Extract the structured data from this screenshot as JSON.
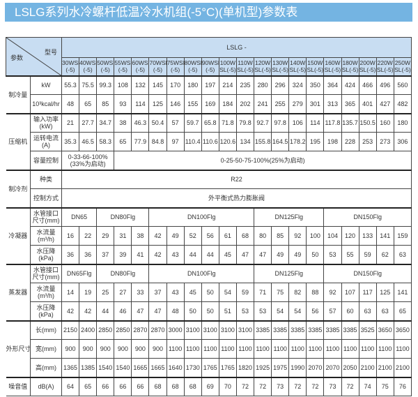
{
  "title": "LSLG系列水冷螺杆低温冷水机组(-5°C)(单机型)参数表",
  "header": {
    "param_label": "参数",
    "model_label": "型号",
    "series_label": "LSLG -",
    "models": [
      [
        "30WSL",
        "(-5)"
      ],
      [
        "40WSL",
        "(-5)"
      ],
      [
        "50WSL",
        "(-5)"
      ],
      [
        "55WSL",
        "(-5)"
      ],
      [
        "60WSL",
        "(-5)"
      ],
      [
        "70WSL",
        "(-5)"
      ],
      [
        "75WSL",
        "(-5)"
      ],
      [
        "80WSL",
        "(-5)"
      ],
      [
        "90WSL",
        "(-5)"
      ],
      [
        "100W",
        "SL(-5)"
      ],
      [
        "110W",
        "SL(-5)"
      ],
      [
        "120W",
        "SL(-5)"
      ],
      [
        "130W",
        "SL(-5)"
      ],
      [
        "140W",
        "SL(-5)"
      ],
      [
        "150W",
        "SL(-5)"
      ],
      [
        "160W",
        "SL(-5)"
      ],
      [
        "180W",
        "SL(-5)"
      ],
      [
        "200W",
        "SL(-5)"
      ],
      [
        "220W",
        "SL(-5)"
      ],
      [
        "250W",
        "SL(-5)"
      ]
    ]
  },
  "groups": [
    {
      "label": "制冷量",
      "rows": [
        {
          "sub": "kW",
          "cells": [
            "55.3",
            "75.5",
            "99.3",
            "108",
            "132",
            "145",
            "170",
            "180",
            "197",
            "214",
            "235",
            "280",
            "296",
            "324",
            "350",
            "364",
            "424",
            "466",
            "496",
            "560"
          ]
        },
        {
          "sub": "10³kcal/hr",
          "cells": [
            "48",
            "65",
            "85",
            "93",
            "114",
            "125",
            "146",
            "155",
            "169",
            "184",
            "202",
            "241",
            "255",
            "279",
            "301",
            "313",
            "365",
            "401",
            "427",
            "482"
          ]
        }
      ]
    },
    {
      "label": "压缩机",
      "rows": [
        {
          "sub": "输入功率(kW)",
          "cells": [
            "21",
            "27.7",
            "34.7",
            "38",
            "46.3",
            "50.4",
            "57",
            "59.7",
            "65.8",
            "71.8",
            "79.8",
            "92.7",
            "97.8",
            "106",
            "114",
            "117.8",
            "135.7",
            "150.5",
            "160",
            "180"
          ]
        },
        {
          "sub": "运转电流(A)",
          "cells": [
            "35.3",
            "46.5",
            "58.3",
            "65",
            "77.9",
            "84.8",
            "97",
            "110.4",
            "110.6",
            "120.6",
            "134",
            "155.8",
            "164.5",
            "178.2",
            "195",
            "198",
            "228",
            "253",
            "273",
            "306"
          ]
        },
        {
          "sub": "容量控制",
          "spans": [
            {
              "v": "0-33-66-100%(33%为启动)",
              "span": 3
            },
            {
              "v": "0-25-50-75-100%(25%为启动)",
              "span": 17
            }
          ]
        }
      ]
    },
    {
      "label": "制冷剂",
      "rows": [
        {
          "sub": "种类",
          "spans": [
            {
              "v": "R22",
              "span": 20
            }
          ]
        },
        {
          "sub": "控制方式",
          "spans": [
            {
              "v": "外平衡式热力膨胀阀",
              "span": 20
            }
          ]
        }
      ]
    },
    {
      "label": "冷凝器",
      "rows": [
        {
          "sub": "水管接口尺寸(mm)",
          "spans": [
            {
              "v": "DN65",
              "span": 2
            },
            {
              "v": "DN80Flg",
              "span": 3
            },
            {
              "v": "DN100Flg",
              "span": 6
            },
            {
              "v": "DN125Flg",
              "span": 4
            },
            {
              "v": "DN150Flg",
              "span": 5
            }
          ]
        },
        {
          "sub": "水流量(m³/h)",
          "cells": [
            "16",
            "22",
            "29",
            "31",
            "38",
            "42",
            "49",
            "52",
            "56",
            "61",
            "68",
            "80",
            "85",
            "92",
            "100",
            "104",
            "120",
            "133",
            "141",
            "159"
          ]
        },
        {
          "sub": "水压降(kPa)",
          "cells": [
            "36",
            "36",
            "37",
            "39",
            "41",
            "42",
            "43",
            "44",
            "44",
            "45",
            "47",
            "47",
            "49",
            "49",
            "50",
            "53",
            "55",
            "59",
            "62",
            "63"
          ]
        }
      ]
    },
    {
      "label": "蒸发器",
      "rows": [
        {
          "sub": "水管接口尺寸(mm)",
          "spans": [
            {
              "v": "DN65Flg",
              "span": 2
            },
            {
              "v": "DN80Flg",
              "span": 3
            },
            {
              "v": "DN100Flg",
              "span": 6
            },
            {
              "v": "DN125Flg",
              "span": 4
            },
            {
              "v": "DN150Flg",
              "span": 5
            }
          ]
        },
        {
          "sub": "水流量(m³/h)",
          "cells": [
            "14",
            "19",
            "25",
            "27",
            "33",
            "37",
            "43",
            "45",
            "50",
            "54",
            "59",
            "71",
            "75",
            "82",
            "88",
            "92",
            "107",
            "117",
            "125",
            "141"
          ]
        },
        {
          "sub": "水压降(kPa)",
          "cells": [
            "42",
            "42",
            "44",
            "46",
            "47",
            "47",
            "48",
            "50",
            "50",
            "51",
            "53",
            "53",
            "54",
            "54",
            "56",
            "57",
            "60",
            "63",
            "63",
            "65"
          ]
        }
      ]
    },
    {
      "label": "外形尺寸",
      "rows": [
        {
          "sub": "长(mm)",
          "cells": [
            "2150",
            "2400",
            "2850",
            "2850",
            "2870",
            "2870",
            "3000",
            "3100",
            "3100",
            "3100",
            "3100",
            "3385",
            "3385",
            "3385",
            "3385",
            "3385",
            "3385",
            "3525",
            "3650",
            "3650"
          ]
        },
        {
          "sub": "宽(mm)",
          "cells": [
            "900",
            "900",
            "900",
            "900",
            "900",
            "900",
            "1100",
            "1100",
            "1100",
            "1100",
            "1100",
            "1100",
            "1100",
            "1100",
            "1100",
            "1100",
            "1100",
            "1100",
            "1100",
            "1100"
          ]
        },
        {
          "sub": "高(mm)",
          "cells": [
            "1365",
            "1385",
            "1540",
            "1540",
            "1665",
            "1665",
            "1640",
            "1730",
            "1765",
            "1765",
            "1820",
            "1925",
            "1975",
            "1990",
            "2070",
            "2070",
            "2050",
            "2100",
            "2100",
            "2100"
          ]
        }
      ]
    },
    {
      "label": "噪音值",
      "rows": [
        {
          "sub": "dB(A)",
          "cells": [
            "64",
            "65",
            "66",
            "66",
            "66",
            "68",
            "68",
            "68",
            "69",
            "70",
            "72",
            "72",
            "73",
            "72",
            "72",
            "73",
            "72",
            "74",
            "75",
            "76"
          ]
        }
      ]
    }
  ],
  "colors": {
    "title_bg": "#74b4e2",
    "header_bg": "#c8ddf2",
    "border": "#444444"
  }
}
